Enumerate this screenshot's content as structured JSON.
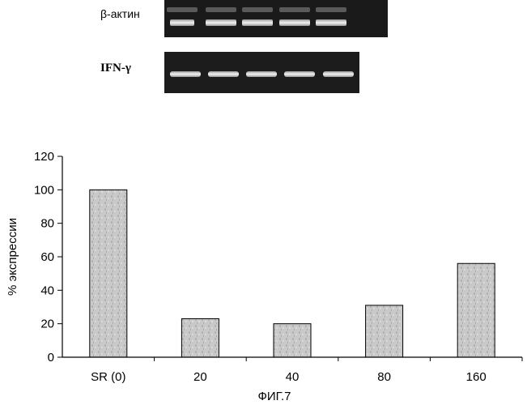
{
  "gels": [
    {
      "label": "β-актин",
      "lanes": 5
    },
    {
      "label": "IFN-γ",
      "lanes": 5
    }
  ],
  "chart_data": {
    "type": "bar",
    "categories": [
      "SR (0)",
      "20",
      "40",
      "80",
      "160"
    ],
    "values": [
      100,
      23,
      20,
      31,
      56
    ],
    "title": "",
    "xlabel": "",
    "ylabel": "% экспрессии",
    "ylim": [
      0,
      120
    ],
    "yticks": [
      0,
      20,
      40,
      60,
      80,
      100,
      120
    ],
    "grid": false
  },
  "caption": "ФИГ.7",
  "colors": {
    "bar_fill": "#c8c8c8",
    "gel_background": "#1a1a1a",
    "band": "#e6e6e6",
    "axis": "#000000"
  }
}
